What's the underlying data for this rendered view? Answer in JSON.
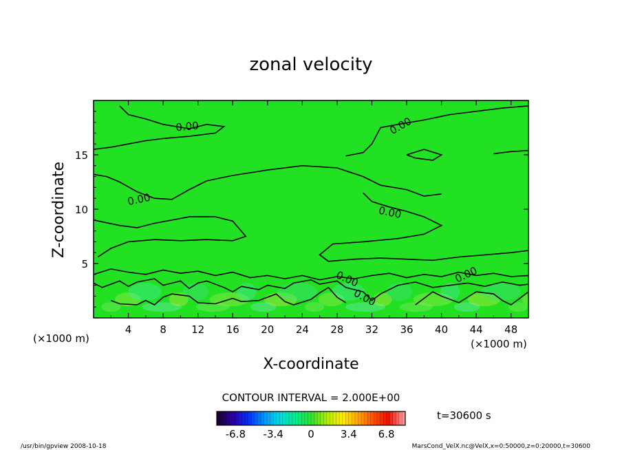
{
  "chart_data": {
    "type": "heatmap",
    "title": "zonal velocity",
    "xlabel": "X-coordinate",
    "ylabel": "Z-coordinate",
    "x_unit": "(×1000 m)",
    "y_unit": "(×1000 m)",
    "xlim": [
      0,
      50
    ],
    "ylim": [
      0,
      20
    ],
    "x_ticks": [
      4,
      8,
      12,
      16,
      20,
      24,
      28,
      32,
      36,
      40,
      44,
      48
    ],
    "y_ticks": [
      5,
      10,
      15
    ],
    "field_color": "#22e022",
    "contour_level_label": "0.00",
    "contour_interval_text": "CONTOUR INTERVAL = 2.000E+00",
    "time_text": "t=30600 s",
    "colorbar": {
      "min": -8.5,
      "max": 8.5,
      "tick_labels": [
        "-6.8",
        "-3.4",
        "0",
        "3.4",
        "6.8"
      ],
      "tick_values": [
        -6.8,
        -3.4,
        0,
        3.4,
        6.8
      ],
      "colors": [
        "#1a0033",
        "#2a00aa",
        "#0033ff",
        "#0099ff",
        "#00dddd",
        "#00ee88",
        "#33e033",
        "#aaee00",
        "#ffee00",
        "#ffaa00",
        "#ff5500",
        "#ee1100",
        "#ff9999"
      ]
    },
    "footer_left": "/usr/bin/gpview   2008-10-18",
    "footer_right": "MarsCond_VelX.nc@VelX,x=0:50000,z=0:20000,t=30600"
  }
}
